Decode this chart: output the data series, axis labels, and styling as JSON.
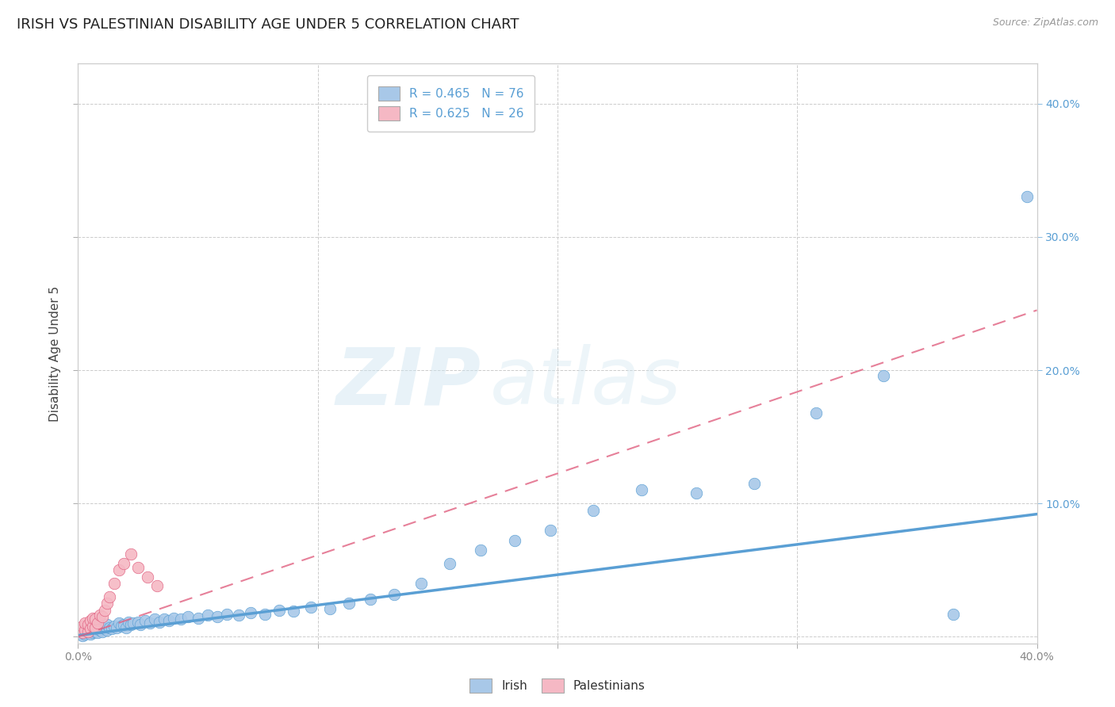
{
  "title": "IRISH VS PALESTINIAN DISABILITY AGE UNDER 5 CORRELATION CHART",
  "source": "Source: ZipAtlas.com",
  "ylabel": "Disability Age Under 5",
  "xmin": 0.0,
  "xmax": 0.4,
  "ymin": -0.005,
  "ymax": 0.43,
  "irish_color": "#a8c8e8",
  "irish_color_dark": "#5a9fd4",
  "palestinians_color": "#f5b8c4",
  "palestinians_color_dark": "#e06080",
  "irish_R": 0.465,
  "irish_N": 76,
  "palestinians_R": 0.625,
  "palestinians_N": 26,
  "legend_label_irish": "Irish",
  "legend_label_palestinians": "Palestinians",
  "watermark_zip": "ZIP",
  "watermark_atlas": "atlas",
  "background_color": "#ffffff",
  "grid_color": "#cccccc",
  "title_fontsize": 13,
  "axis_label_fontsize": 11,
  "tick_fontsize": 10,
  "legend_fontsize": 11,
  "irish_x": [
    0.001,
    0.001,
    0.002,
    0.002,
    0.002,
    0.003,
    0.003,
    0.003,
    0.004,
    0.004,
    0.004,
    0.005,
    0.005,
    0.005,
    0.006,
    0.006,
    0.007,
    0.007,
    0.008,
    0.008,
    0.009,
    0.009,
    0.01,
    0.01,
    0.011,
    0.012,
    0.012,
    0.013,
    0.014,
    0.015,
    0.016,
    0.017,
    0.018,
    0.019,
    0.02,
    0.021,
    0.022,
    0.023,
    0.025,
    0.026,
    0.028,
    0.03,
    0.032,
    0.034,
    0.036,
    0.038,
    0.04,
    0.043,
    0.046,
    0.05,
    0.054,
    0.058,
    0.062,
    0.067,
    0.072,
    0.078,
    0.084,
    0.09,
    0.097,
    0.105,
    0.113,
    0.122,
    0.132,
    0.143,
    0.155,
    0.168,
    0.182,
    0.197,
    0.215,
    0.235,
    0.258,
    0.282,
    0.308,
    0.336,
    0.365,
    0.396
  ],
  "irish_y": [
    0.002,
    0.004,
    0.003,
    0.005,
    0.001,
    0.004,
    0.006,
    0.002,
    0.003,
    0.005,
    0.007,
    0.002,
    0.005,
    0.008,
    0.003,
    0.006,
    0.004,
    0.007,
    0.003,
    0.006,
    0.005,
    0.008,
    0.004,
    0.007,
    0.006,
    0.005,
    0.009,
    0.007,
    0.006,
    0.008,
    0.007,
    0.01,
    0.008,
    0.009,
    0.007,
    0.011,
    0.009,
    0.01,
    0.011,
    0.009,
    0.012,
    0.01,
    0.013,
    0.011,
    0.013,
    0.012,
    0.014,
    0.013,
    0.015,
    0.014,
    0.016,
    0.015,
    0.017,
    0.016,
    0.018,
    0.017,
    0.02,
    0.019,
    0.022,
    0.021,
    0.025,
    0.028,
    0.032,
    0.04,
    0.055,
    0.065,
    0.072,
    0.08,
    0.095,
    0.11,
    0.108,
    0.115,
    0.168,
    0.196,
    0.017,
    0.33
  ],
  "pal_x": [
    0.001,
    0.002,
    0.002,
    0.003,
    0.003,
    0.004,
    0.004,
    0.005,
    0.005,
    0.006,
    0.006,
    0.007,
    0.007,
    0.008,
    0.009,
    0.01,
    0.011,
    0.012,
    0.013,
    0.015,
    0.017,
    0.019,
    0.022,
    0.025,
    0.029,
    0.033
  ],
  "pal_y": [
    0.005,
    0.003,
    0.008,
    0.005,
    0.01,
    0.004,
    0.009,
    0.006,
    0.012,
    0.008,
    0.014,
    0.007,
    0.013,
    0.01,
    0.016,
    0.015,
    0.02,
    0.025,
    0.03,
    0.04,
    0.05,
    0.055,
    0.062,
    0.052,
    0.045,
    0.038
  ],
  "irish_line_x0": 0.0,
  "irish_line_y0": 0.001,
  "irish_line_x1": 0.4,
  "irish_line_y1": 0.092,
  "pal_line_x0": 0.0,
  "pal_line_y0": 0.0,
  "pal_line_x1": 0.4,
  "pal_line_y1": 0.245
}
